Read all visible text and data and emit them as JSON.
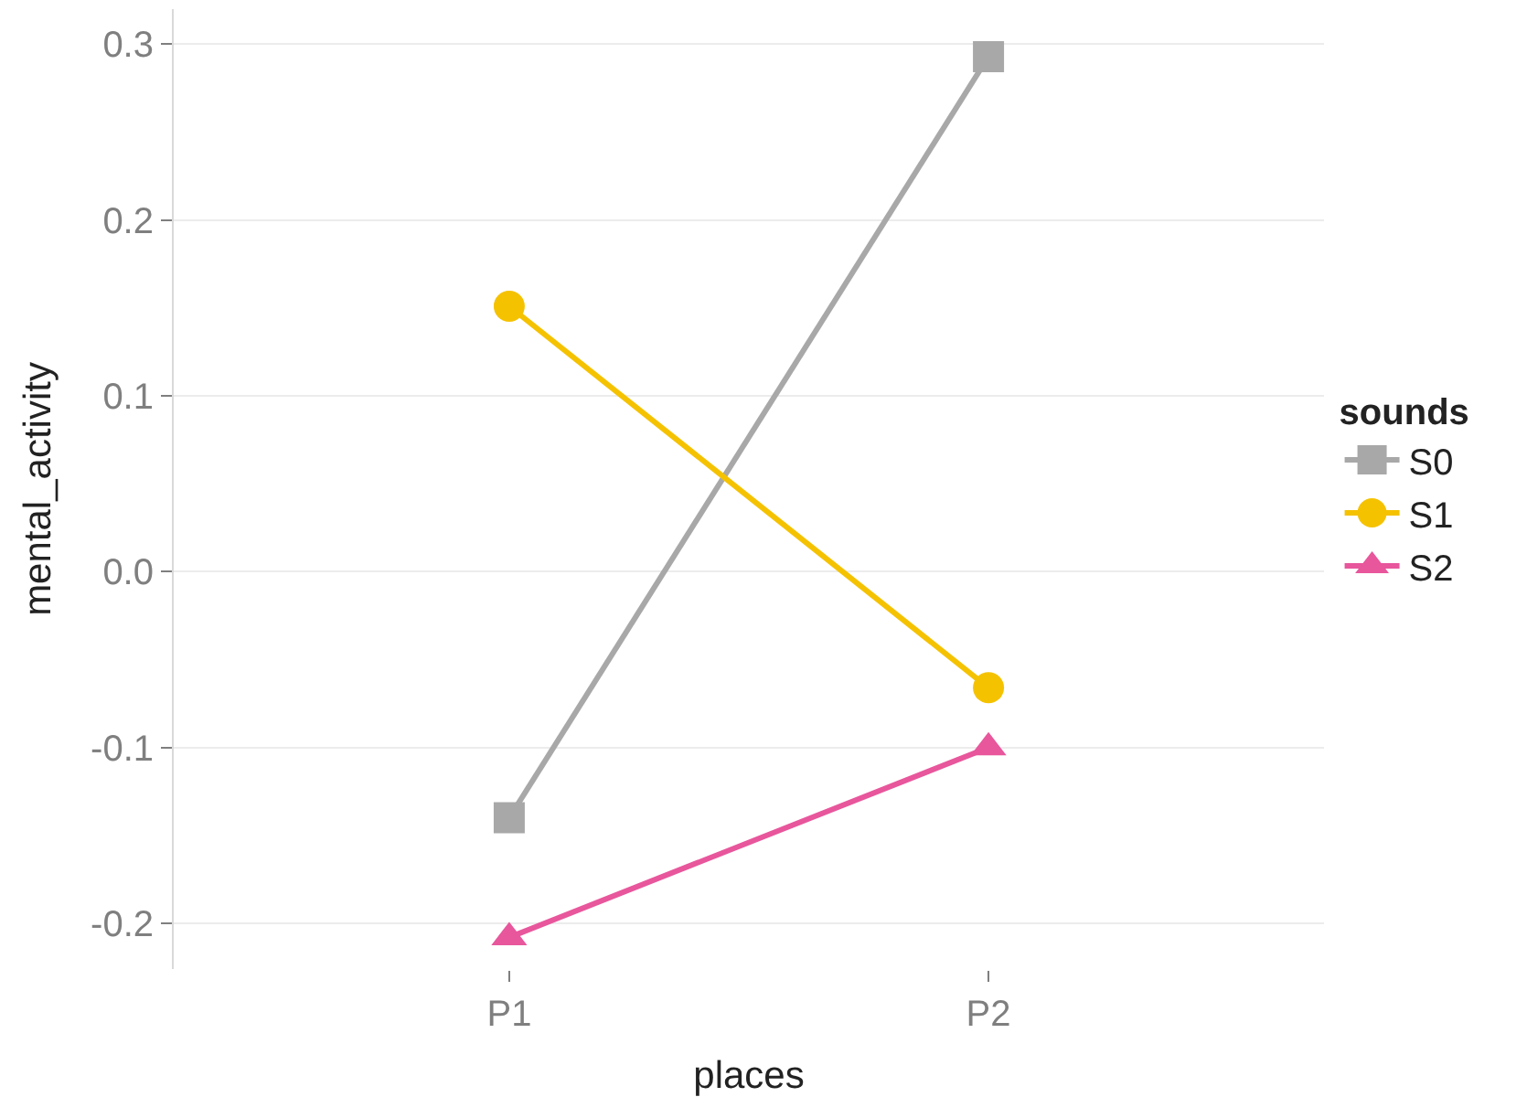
{
  "chart_data": {
    "type": "line",
    "xlabel": "places",
    "ylabel": "mental_activity",
    "legend_title": "sounds",
    "categories": [
      "P1",
      "P2"
    ],
    "series": [
      {
        "name": "S0",
        "color": "#a8a8a8",
        "marker": "square",
        "values": [
          -0.14,
          0.293
        ]
      },
      {
        "name": "S1",
        "color": "#f5c200",
        "marker": "circle",
        "values": [
          0.151,
          -0.066
        ]
      },
      {
        "name": "S2",
        "color": "#e8569c",
        "marker": "triangle",
        "values": [
          -0.208,
          -0.1
        ]
      }
    ],
    "ylim": [
      -0.226,
      0.32
    ],
    "yticks": [
      {
        "value": -0.2,
        "label": "-0.2"
      },
      {
        "value": -0.1,
        "label": "-0.1"
      },
      {
        "value": 0,
        "label": "0.0"
      },
      0.1,
      0.2,
      0.3
    ],
    "grid": "y",
    "legend": "right",
    "line_style": "solid"
  }
}
